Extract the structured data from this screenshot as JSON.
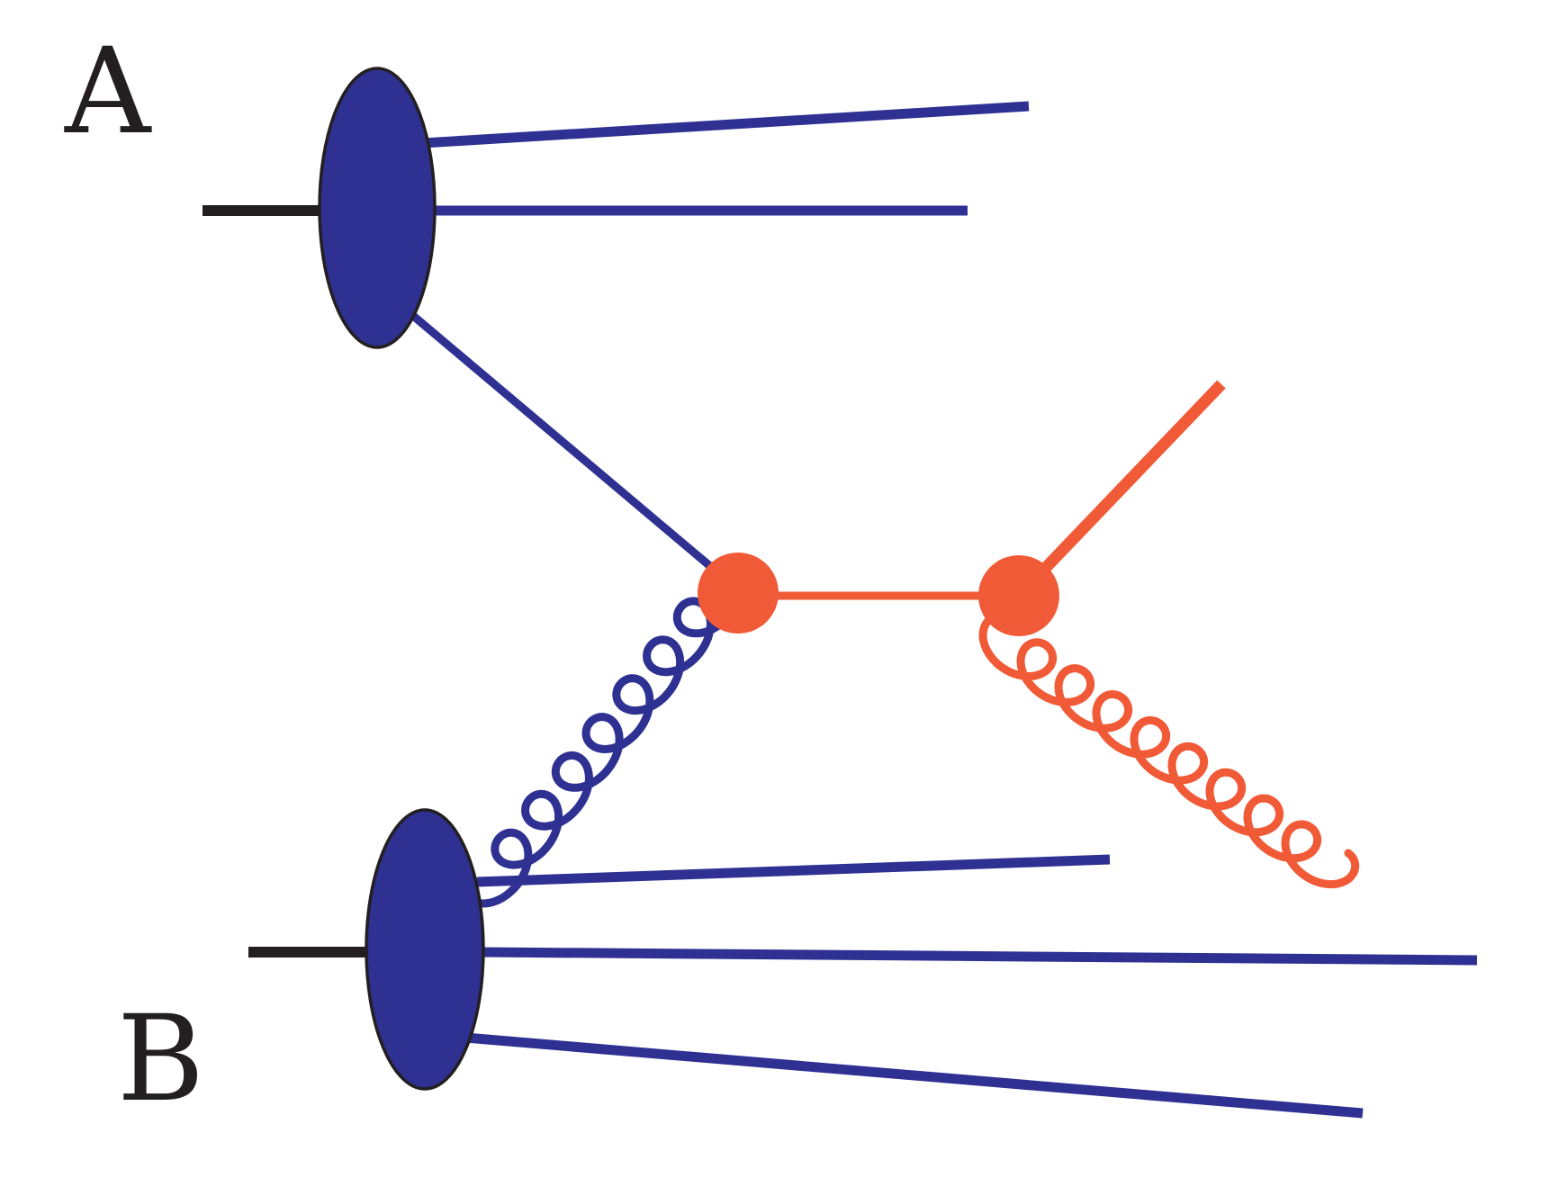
{
  "labels": {
    "hadron_a": "A",
    "hadron_b": "B"
  },
  "colors": {
    "hadron": "#2e3192",
    "hard_process": "#f15a36",
    "beam": "#231f20",
    "outline": "#231f20",
    "background": "#ffffff"
  },
  "icons": {
    "gluon": "curly-gluon-line",
    "hadron_blob": "filled-ellipse",
    "vertex": "filled-dot"
  }
}
